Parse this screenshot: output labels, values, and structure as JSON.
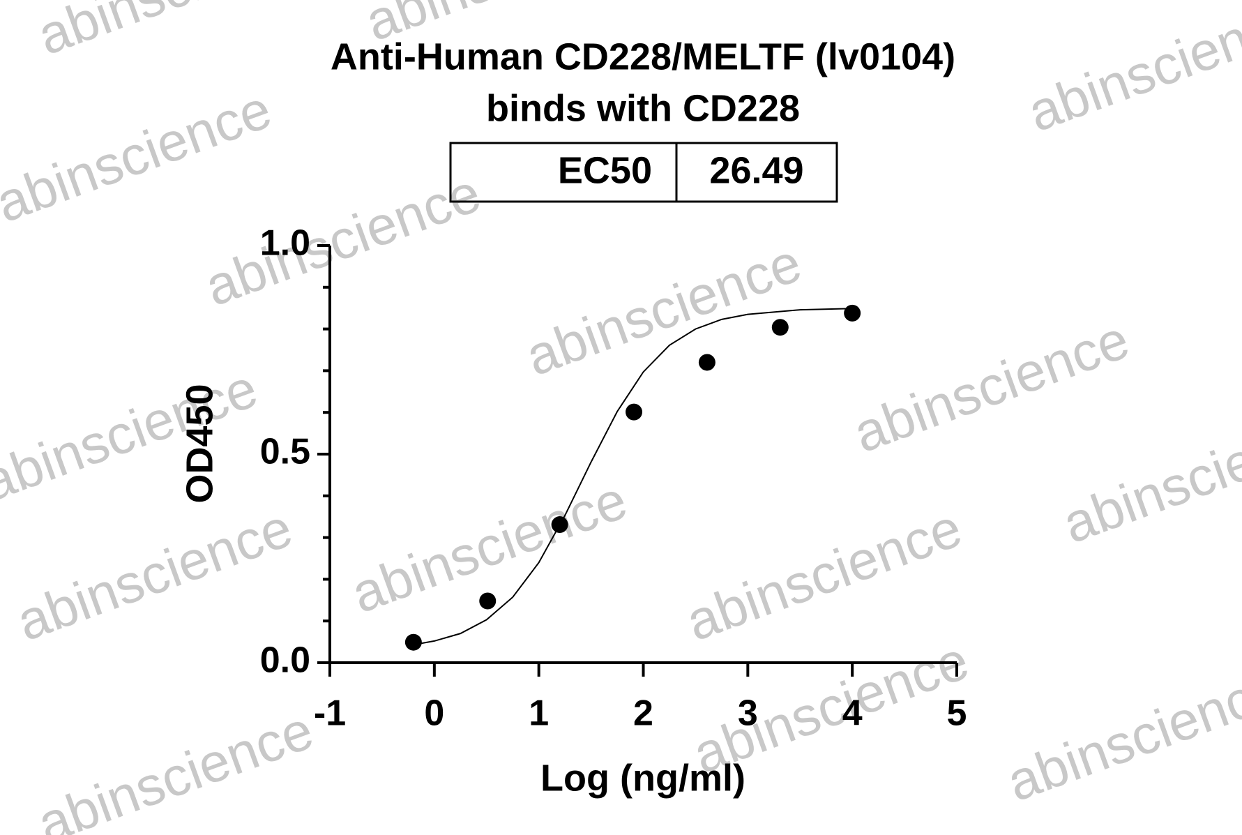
{
  "chart_data": {
    "type": "scatter",
    "title": "Anti-Human CD228/MELTF (lv0104)",
    "subtitle": "binds with CD228",
    "table": {
      "label": "EC50",
      "value": "26.49"
    },
    "watermark": "abinscience",
    "x_label": "Log (ng/ml)",
    "y_label": "OD450",
    "xlim": [
      -1,
      5
    ],
    "xticks": [
      -1,
      0,
      1,
      2,
      3,
      4,
      5
    ],
    "ylim": [
      0,
      1
    ],
    "yticks": [
      {
        "value": 0,
        "label": "0.0"
      },
      {
        "value": 0.5,
        "label": "0.5"
      },
      {
        "value": 1,
        "label": "1.0"
      }
    ],
    "yminorticks": [
      0.1,
      0.2,
      0.3,
      0.4,
      0.6,
      0.7,
      0.8,
      0.9
    ],
    "series": [
      {
        "color": "#000000",
        "x": [
          -0.2,
          0.51,
          1.2,
          1.91,
          2.61,
          3.31,
          4.0
        ],
        "values": [
          0.049,
          0.148,
          0.331,
          0.601,
          0.72,
          0.804,
          0.838
        ]
      }
    ],
    "fit": {
      "color": "#000000",
      "x": [
        -0.2,
        0,
        0.25,
        0.5,
        0.75,
        1,
        1.25,
        1.5,
        1.75,
        2,
        2.25,
        2.5,
        2.75,
        3,
        3.5,
        4
      ],
      "values": [
        0.043,
        0.052,
        0.07,
        0.103,
        0.157,
        0.24,
        0.353,
        0.481,
        0.602,
        0.697,
        0.761,
        0.8,
        0.823,
        0.835,
        0.846,
        0.849
      ]
    }
  }
}
